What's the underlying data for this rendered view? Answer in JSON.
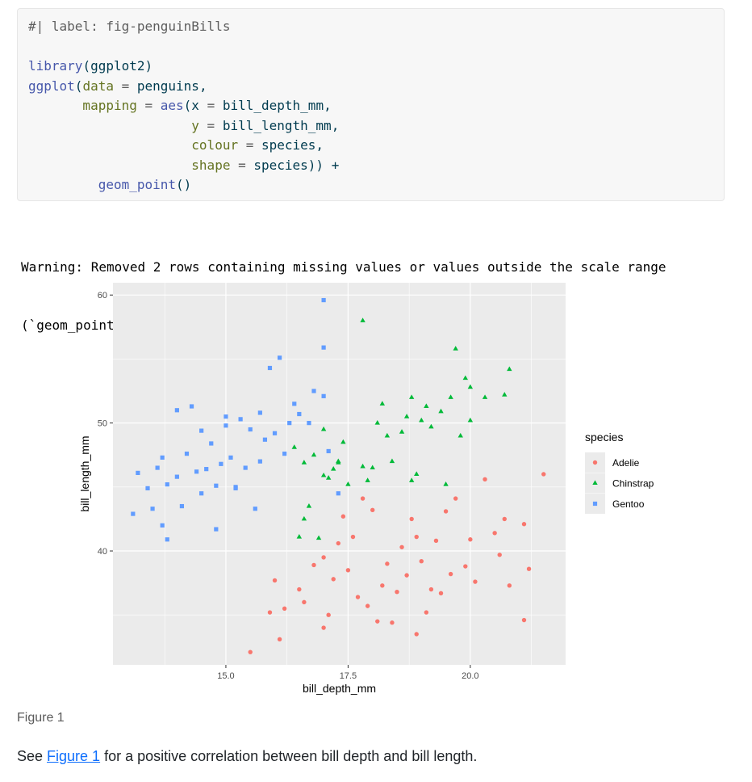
{
  "code": {
    "comment": {
      "t": "#| label: fig-penguinBills",
      "c": "#5e5e5e"
    },
    "lines": [
      [
        {
          "t": "library",
          "c": "#4758ab"
        },
        {
          "t": "(ggplot2)",
          "c": "#003b4f"
        }
      ],
      [
        {
          "t": "ggplot",
          "c": "#4758ab"
        },
        {
          "t": "(",
          "c": "#003b4f"
        },
        {
          "t": "data",
          "c": "#657422"
        },
        {
          "t": " = ",
          "c": "#5e5e5e"
        },
        {
          "t": "penguins,",
          "c": "#003b4f"
        }
      ],
      [
        {
          "t": "       mapping",
          "c": "#657422"
        },
        {
          "t": " = ",
          "c": "#5e5e5e"
        },
        {
          "t": "aes",
          "c": "#4758ab"
        },
        {
          "t": "(x",
          "c": "#003b4f"
        },
        {
          "t": " = ",
          "c": "#5e5e5e"
        },
        {
          "t": "bill_depth_mm,",
          "c": "#003b4f"
        }
      ],
      [
        {
          "t": "                     y",
          "c": "#657422"
        },
        {
          "t": " = ",
          "c": "#5e5e5e"
        },
        {
          "t": "bill_length_mm,",
          "c": "#003b4f"
        }
      ],
      [
        {
          "t": "                     colour",
          "c": "#657422"
        },
        {
          "t": " = ",
          "c": "#5e5e5e"
        },
        {
          "t": "species,",
          "c": "#003b4f"
        }
      ],
      [
        {
          "t": "                     shape",
          "c": "#657422"
        },
        {
          "t": " = ",
          "c": "#5e5e5e"
        },
        {
          "t": "species)) +",
          "c": "#003b4f"
        }
      ],
      [
        {
          "t": "         geom_point",
          "c": "#4758ab"
        },
        {
          "t": "()",
          "c": "#003b4f"
        }
      ]
    ]
  },
  "warning": [
    "Warning: Removed 2 rows containing missing values or values outside the scale range",
    "(`geom_point()`)."
  ],
  "chart_data": {
    "type": "scatter",
    "xlabel": "bill_depth_mm",
    "ylabel": "bill_length_mm",
    "legend_title": "species",
    "xlim": [
      12.69,
      21.95
    ],
    "ylim": [
      31.1,
      60.96
    ],
    "xticks": [
      {
        "value": 15,
        "label": "15.0"
      },
      {
        "value": 17.5,
        "label": "17.5"
      },
      {
        "value": 20,
        "label": "20.0"
      }
    ],
    "yticks": [
      40,
      50,
      60
    ],
    "xminor": [
      13.75,
      16.25,
      18.75,
      21.25
    ],
    "yminor": [
      35,
      45,
      55
    ],
    "grid": true,
    "legend": "right",
    "series": [
      {
        "name": "Adelie",
        "color": "#f8766d",
        "shape": "circle",
        "x": [
          15.5,
          16.1,
          15.9,
          16.2,
          16.0,
          16.5,
          16.6,
          17.0,
          17.1,
          17.2,
          17.0,
          17.3,
          17.6,
          17.8,
          18.0,
          17.5,
          17.7,
          17.9,
          18.1,
          18.4,
          18.5,
          18.3,
          18.6,
          18.8,
          18.9,
          19.0,
          19.2,
          19.1,
          18.9,
          19.3,
          19.5,
          19.6,
          19.4,
          19.7,
          19.9,
          20.0,
          20.3,
          20.5,
          20.1,
          20.7,
          20.6,
          21.1,
          21.2,
          21.1,
          21.5,
          17.4,
          18.2,
          18.7,
          20.8,
          16.8
        ],
        "values": [
          32.1,
          33.1,
          35.2,
          35.5,
          37.7,
          37.0,
          36.0,
          34.0,
          35.0,
          37.8,
          39.5,
          40.6,
          41.1,
          44.1,
          43.2,
          38.5,
          36.4,
          35.7,
          34.5,
          34.4,
          36.8,
          39.0,
          40.3,
          42.5,
          41.1,
          39.2,
          37.0,
          35.2,
          33.5,
          40.8,
          43.1,
          38.2,
          36.7,
          44.1,
          38.8,
          40.9,
          45.6,
          41.4,
          37.6,
          42.5,
          39.7,
          42.1,
          38.6,
          34.6,
          46.0,
          42.7,
          37.3,
          38.1,
          37.3,
          38.9
        ]
      },
      {
        "name": "Chinstrap",
        "color": "#00ba38",
        "shape": "triangle",
        "x": [
          16.4,
          16.6,
          16.8,
          16.7,
          16.5,
          16.6,
          17.0,
          17.1,
          17.2,
          17.3,
          17.4,
          17.0,
          17.9,
          17.8,
          18.0,
          17.8,
          18.1,
          18.2,
          18.3,
          18.4,
          18.6,
          18.7,
          18.8,
          18.8,
          18.9,
          19.0,
          19.1,
          19.2,
          19.4,
          19.5,
          19.6,
          19.7,
          19.8,
          19.9,
          20.0,
          20.0,
          20.3,
          20.7,
          20.8,
          17.5,
          16.9,
          17.3
        ],
        "values": [
          48.1,
          46.9,
          47.5,
          43.5,
          41.1,
          42.5,
          45.9,
          45.7,
          46.4,
          47.0,
          48.5,
          49.5,
          45.5,
          46.6,
          46.5,
          58.0,
          50.0,
          51.5,
          49.0,
          47.0,
          49.3,
          50.5,
          52.0,
          45.5,
          46.0,
          50.2,
          51.3,
          49.7,
          50.9,
          45.2,
          52.0,
          55.8,
          49.0,
          53.5,
          52.8,
          50.2,
          52.0,
          52.2,
          54.2,
          45.2,
          41.0,
          46.9
        ]
      },
      {
        "name": "Gentoo",
        "color": "#619cff",
        "shape": "square",
        "x": [
          13.1,
          13.2,
          13.4,
          13.5,
          13.6,
          13.7,
          13.8,
          13.8,
          13.7,
          14.0,
          14.1,
          14.2,
          14.3,
          14.4,
          14.5,
          14.5,
          14.6,
          14.7,
          14.8,
          14.9,
          15.0,
          15.0,
          15.1,
          15.2,
          15.3,
          15.4,
          15.5,
          15.6,
          15.7,
          15.7,
          15.8,
          15.9,
          16.0,
          16.1,
          16.2,
          16.3,
          16.4,
          16.5,
          16.8,
          17.0,
          17.0,
          17.0,
          16.7,
          14.0,
          14.8,
          15.2,
          17.3,
          17.1
        ],
        "values": [
          42.9,
          46.1,
          44.9,
          43.3,
          46.5,
          42.0,
          40.9,
          45.2,
          47.3,
          45.8,
          43.5,
          47.6,
          51.3,
          46.2,
          49.4,
          44.5,
          46.4,
          48.4,
          45.1,
          46.8,
          49.8,
          50.5,
          47.3,
          45.0,
          50.3,
          46.5,
          49.5,
          43.3,
          47.0,
          50.8,
          48.7,
          54.3,
          49.2,
          55.1,
          47.6,
          50.0,
          51.5,
          50.7,
          52.5,
          59.6,
          55.9,
          52.1,
          50.0,
          51.0,
          41.7,
          44.9,
          44.5,
          47.8
        ]
      }
    ]
  },
  "caption": "Figure 1",
  "paragraph": {
    "before": "See ",
    "link": "Figure 1",
    "after": " for a positive correlation between bill depth and bill length."
  }
}
